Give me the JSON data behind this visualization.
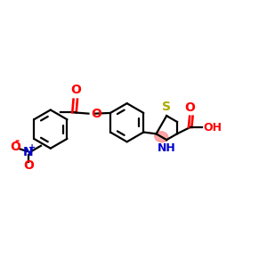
{
  "bg_color": "#ffffff",
  "bond_color": "#000000",
  "S_color": "#aaaa00",
  "N_color": "#0000cc",
  "O_color": "#ff0000",
  "highlight_color": "#ff8888",
  "figsize": [
    3.0,
    3.0
  ],
  "dpi": 100,
  "xlim": [
    0,
    12
  ],
  "ylim": [
    1,
    9
  ]
}
